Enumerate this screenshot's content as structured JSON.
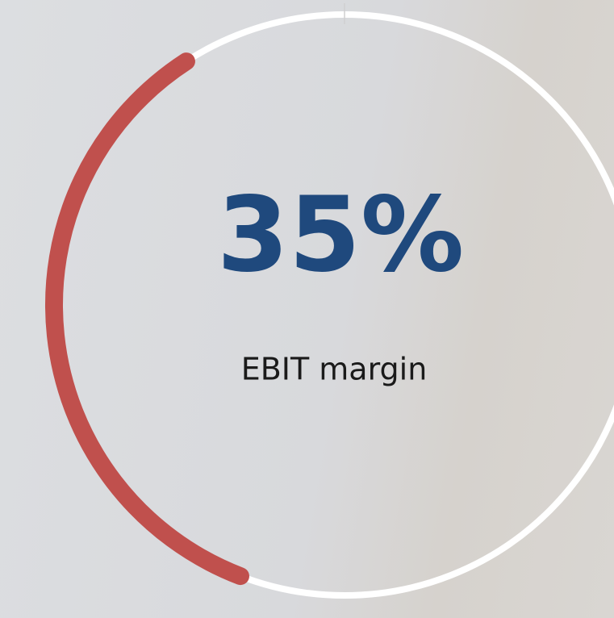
{
  "chart_data": {
    "type": "gauge",
    "values": [
      35
    ],
    "value_labels": [
      "35%"
    ],
    "label": "EBIT margin",
    "ylim": [
      0,
      100
    ],
    "color": "#c0504d",
    "track_color": "#ffffff",
    "text_color": "#1f497d"
  }
}
